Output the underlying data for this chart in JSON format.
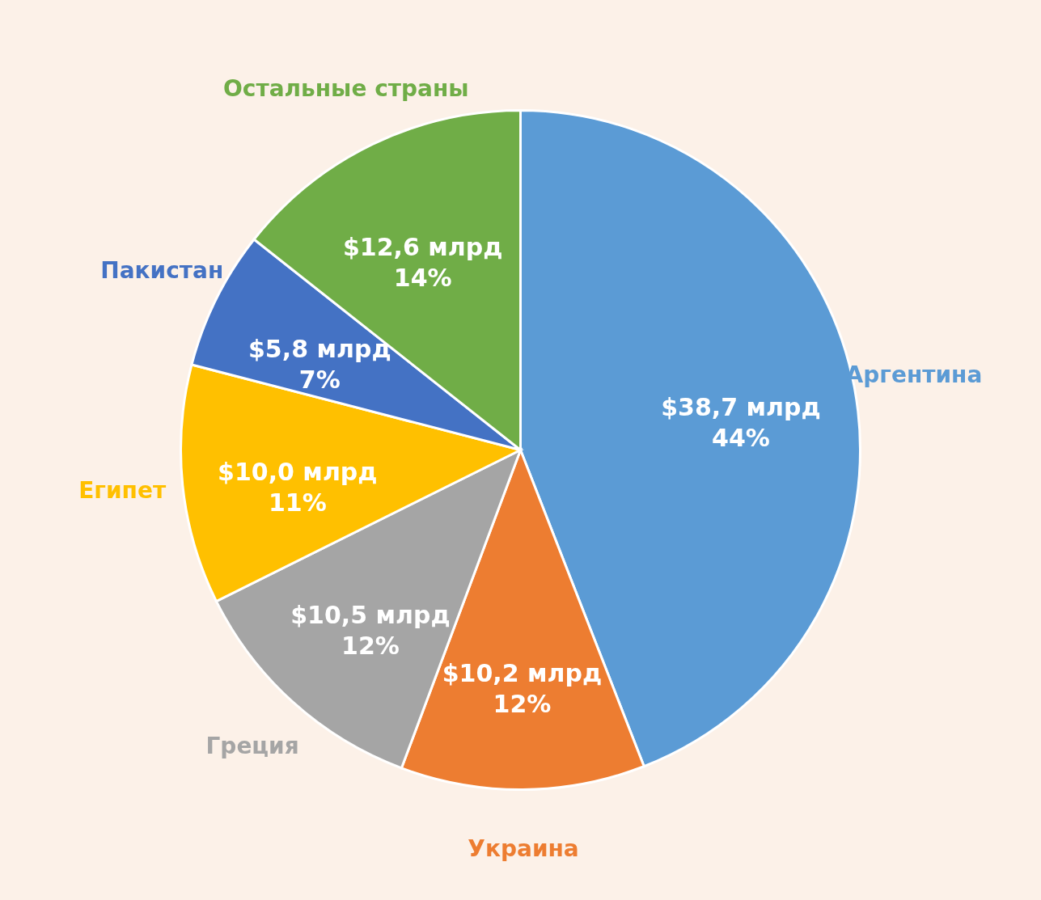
{
  "chart_data": {
    "type": "pie",
    "categories": [
      "Аргентина",
      "Украина",
      "Греция",
      "Египет",
      "Пакистан",
      "Остальные страны"
    ],
    "values": [
      38.7,
      10.2,
      10.5,
      10.0,
      5.8,
      12.6
    ],
    "colors": [
      "#5b9bd5",
      "#ed7d31",
      "#a5a5a5",
      "#ffc000",
      "#4472c4",
      "#70ad47"
    ],
    "value_labels": [
      "$38,7 млрд\n44%",
      "$10,2 млрд\n12%",
      "$10,5 млрд\n12%",
      "$10,0 млрд\n11%",
      "$5,8 млрд\n7%",
      "$12,6 млрд\n14%"
    ],
    "legend": false
  }
}
